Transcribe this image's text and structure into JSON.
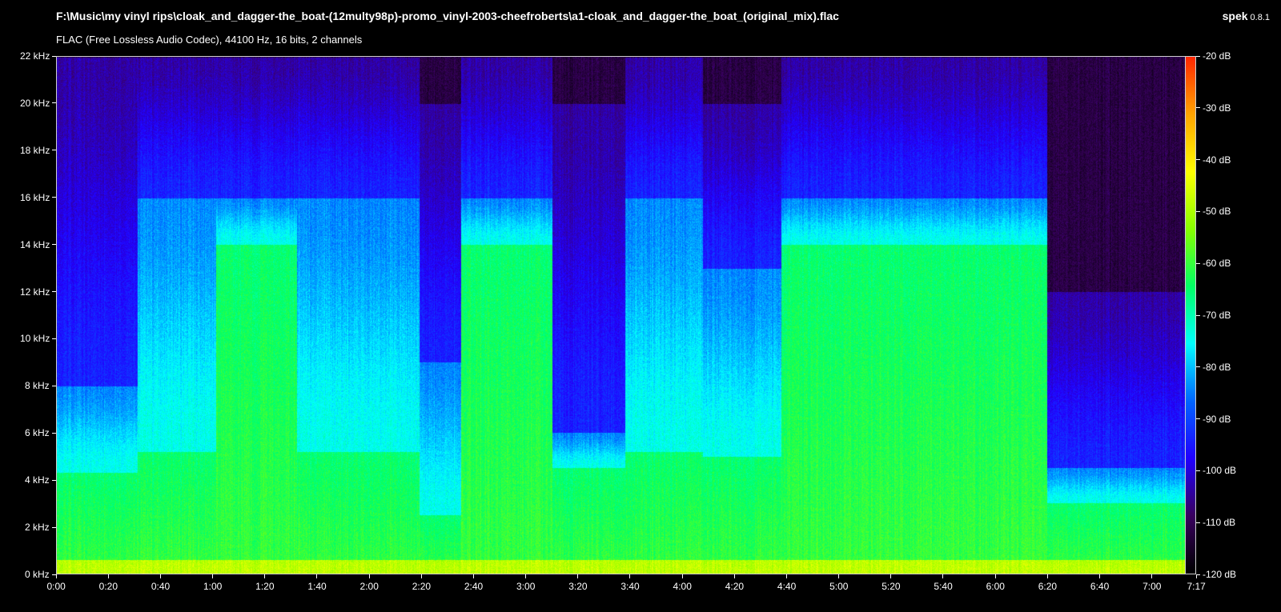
{
  "window": {
    "file_path": "F:\\Music\\my vinyl rips\\cloak_and_dagger-the_boat-(12multy98p)-promo_vinyl-2003-cheefroberts\\a1-cloak_and_dagger-the_boat_(original_mix).flac",
    "file_info": "FLAC (Free Lossless Audio Codec), 44100 Hz, 16 bits, 2 channels",
    "app_name": "spek",
    "app_version": "0.8.1"
  },
  "chart_data": {
    "type": "heatmap",
    "title": "",
    "xlabel": "",
    "ylabel": "",
    "x_ticks": [
      "0:00",
      "0:20",
      "0:40",
      "1:00",
      "1:20",
      "1:40",
      "2:00",
      "2:20",
      "2:40",
      "3:00",
      "3:20",
      "3:40",
      "4:00",
      "4:20",
      "4:40",
      "5:00",
      "5:20",
      "5:40",
      "6:00",
      "6:20",
      "6:40",
      "7:00",
      "7:17"
    ],
    "x_tick_seconds": [
      0,
      20,
      40,
      60,
      80,
      100,
      120,
      140,
      160,
      180,
      200,
      220,
      240,
      260,
      280,
      300,
      320,
      340,
      360,
      380,
      400,
      420,
      437
    ],
    "xlim_seconds": [
      0,
      437
    ],
    "y_ticks": [
      "0 kHz",
      "2 kHz",
      "4 kHz",
      "6 kHz",
      "8 kHz",
      "10 kHz",
      "12 kHz",
      "14 kHz",
      "16 kHz",
      "18 kHz",
      "20 kHz",
      "22 kHz"
    ],
    "y_tick_khz": [
      0,
      2,
      4,
      6,
      8,
      10,
      12,
      14,
      16,
      18,
      20,
      22
    ],
    "ylim_khz": [
      0,
      22
    ],
    "colorbar_labels": [
      "-20 dB",
      "-30 dB",
      "-40 dB",
      "-50 dB",
      "-60 dB",
      "-70 dB",
      "-80 dB",
      "-90 dB",
      "-100 dB",
      "-110 dB",
      "-120 dB"
    ],
    "colorbar_db": [
      -20,
      -30,
      -40,
      -50,
      -60,
      -70,
      -80,
      -90,
      -100,
      -110,
      -120
    ],
    "zlim_db": [
      -120,
      -20
    ],
    "colormap_hex": [
      "#000000",
      "#3a0060",
      "#2200ff",
      "#0066ff",
      "#00ffff",
      "#00ff66",
      "#88ff00",
      "#ffff00",
      "#ffa500",
      "#ff2800"
    ],
    "segments": [
      {
        "start_s": 0,
        "end_s": 31,
        "bright_khz": 4.3,
        "blue_khz": 8.0,
        "top_khz": 22
      },
      {
        "start_s": 31,
        "end_s": 61,
        "bright_khz": 5.2,
        "blue_khz": 16.0,
        "top_khz": 22
      },
      {
        "start_s": 61,
        "end_s": 92,
        "bright_khz": 14.0,
        "blue_khz": 16.0,
        "top_khz": 22
      },
      {
        "start_s": 92,
        "end_s": 139,
        "bright_khz": 5.2,
        "blue_khz": 16.0,
        "top_khz": 22
      },
      {
        "start_s": 139,
        "end_s": 155,
        "bright_khz": 2.5,
        "blue_khz": 9.0,
        "top_khz": 20
      },
      {
        "start_s": 155,
        "end_s": 190,
        "bright_khz": 14.0,
        "blue_khz": 16.0,
        "top_khz": 22
      },
      {
        "start_s": 190,
        "end_s": 218,
        "bright_khz": 4.5,
        "blue_khz": 6.0,
        "top_khz": 20
      },
      {
        "start_s": 218,
        "end_s": 248,
        "bright_khz": 5.2,
        "blue_khz": 16.0,
        "top_khz": 22
      },
      {
        "start_s": 248,
        "end_s": 278,
        "bright_khz": 5.0,
        "blue_khz": 13.0,
        "top_khz": 20
      },
      {
        "start_s": 278,
        "end_s": 350,
        "bright_khz": 14.0,
        "blue_khz": 16.0,
        "top_khz": 22
      },
      {
        "start_s": 350,
        "end_s": 380,
        "bright_khz": 14.0,
        "blue_khz": 16.0,
        "top_khz": 22
      },
      {
        "start_s": 380,
        "end_s": 437,
        "bright_khz": 3.0,
        "blue_khz": 4.5,
        "top_khz": 12
      }
    ]
  }
}
